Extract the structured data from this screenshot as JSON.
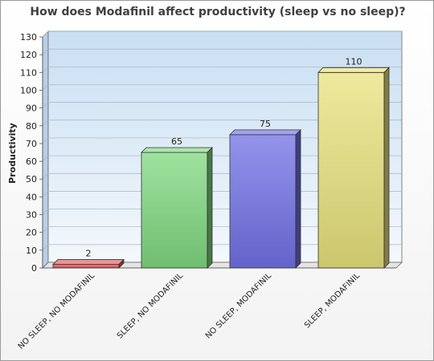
{
  "chart_data": {
    "type": "bar",
    "title": "How does Modafinil affect productivity (sleep vs no sleep)?",
    "xlabel": "",
    "ylabel": "Productivity",
    "ylim": [
      0,
      130
    ],
    "yticks": [
      0,
      10,
      20,
      30,
      40,
      50,
      60,
      70,
      80,
      90,
      100,
      110,
      120,
      130
    ],
    "grid": true,
    "categories": [
      "NO SLEEP, NO MODAFINIL",
      "SLEEP, NO MODAFINIL",
      "NO SLEEP, MODAFINIL",
      "SLEEP, MODAFINIL"
    ],
    "values": [
      2,
      65,
      75,
      110
    ],
    "colors": [
      "#e8585c",
      "#7fd87f",
      "#7070e6",
      "#e8e27c"
    ]
  }
}
